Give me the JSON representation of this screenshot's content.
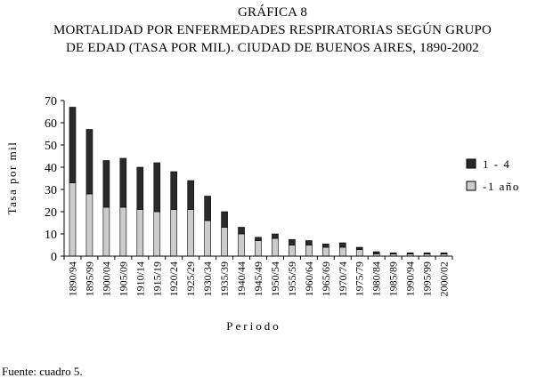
{
  "figure_label": "GRÁFICA 8",
  "title_line_2": "MORTALIDAD POR ENFERMEDADES RESPIRATORIAS SEGÚN GRUPO",
  "title_line_3": "DE EDAD (TASA POR MIL). CIUDAD DE BUENOS AIRES, 1890-2002",
  "source": "Fuente: cuadro 5.",
  "colors": {
    "series_1_4": "#2a2a2a",
    "series_menos_1": "#cccccc",
    "axis": "#000000"
  },
  "chart_data": {
    "type": "bar",
    "stacked": true,
    "title": "MORTALIDAD POR ENFERMEDADES RESPIRATORIAS SEGÚN GRUPO DE EDAD (TASA POR MIL). CIUDAD DE BUENOS AIRES, 1890-2002",
    "xlabel": "Periodo",
    "ylabel": "Tasa por mil",
    "ylim": [
      0,
      70
    ],
    "yticks": [
      0,
      10,
      20,
      30,
      40,
      50,
      60,
      70
    ],
    "legend_position": "right",
    "grid": false,
    "categories": [
      "1890/94",
      "1895/99",
      "1900/04",
      "1905/09",
      "1910/14",
      "1915/19",
      "1920/24",
      "1925/29",
      "1930/34",
      "1935/39",
      "1940/44",
      "1945/49",
      "1950/54",
      "1955/59",
      "1960/64",
      "1965/69",
      "1970/74",
      "1975/79",
      "1980/84",
      "1985/89",
      "1990/94",
      "1995/99",
      "2000/02"
    ],
    "series": [
      {
        "name": "-1 año",
        "color": "#cccccc",
        "values": [
          33,
          28,
          22,
          22,
          21,
          20,
          21,
          21,
          16,
          13,
          10,
          7,
          8,
          5,
          5,
          4,
          4,
          3,
          1,
          1,
          1,
          1,
          1
        ]
      },
      {
        "name": "1 - 4",
        "color": "#2a2a2a",
        "values": [
          34,
          29,
          21,
          22,
          19,
          22,
          17,
          13,
          11,
          7,
          3,
          1.5,
          2,
          2.5,
          2,
          1.5,
          2,
          1,
          1,
          0.5,
          0.5,
          0.5,
          0.5
        ]
      }
    ],
    "legend": [
      "1 - 4",
      "-1 año"
    ]
  }
}
